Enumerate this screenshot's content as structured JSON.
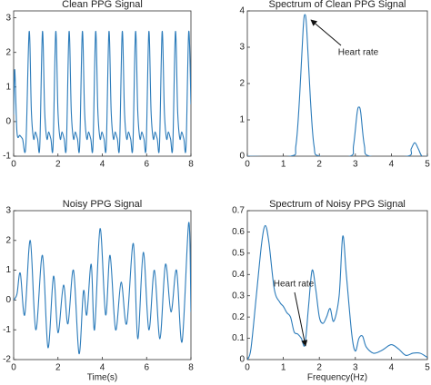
{
  "chart_data": [
    {
      "type": "line",
      "title": "Clean PPG Signal",
      "color": "#2b7bba",
      "x": [
        0,
        0.05,
        0.15,
        0.28,
        0.4,
        0.55,
        0.7,
        0.8,
        0.9,
        0.98,
        1.08,
        1.18,
        1.3,
        1.4,
        1.5,
        1.58,
        1.68,
        1.78,
        1.9,
        2.0,
        2.1,
        2.18,
        2.28,
        2.38,
        2.5,
        2.6,
        2.7,
        2.78,
        2.88,
        2.98,
        3.1,
        3.2,
        3.3,
        3.38,
        3.48,
        3.58,
        3.7,
        3.8,
        3.9,
        3.98,
        4.08,
        4.18,
        4.3,
        4.4,
        4.5,
        4.58,
        4.68,
        4.78,
        4.9,
        5.0,
        5.1,
        5.18,
        5.28,
        5.38,
        5.5,
        5.6,
        5.7,
        5.78,
        5.88,
        5.98,
        6.1,
        6.2,
        6.3,
        6.38,
        6.48,
        6.58,
        6.7,
        6.8,
        6.9,
        6.98,
        7.08,
        7.18,
        7.3,
        7.4,
        7.5,
        7.58,
        7.68,
        7.78,
        7.9,
        8.0
      ],
      "values": [
        0.2,
        1.5,
        -0.3,
        -0.4,
        -0.5,
        -0.7,
        2.6,
        0.3,
        -0.5,
        -0.3,
        -0.5,
        -0.7,
        2.6,
        0.3,
        -0.5,
        -0.3,
        -0.5,
        -0.7,
        2.6,
        0.3,
        -0.5,
        -0.3,
        -0.5,
        -0.7,
        2.6,
        0.3,
        -0.5,
        -0.3,
        -0.5,
        -0.7,
        2.6,
        0.3,
        -0.5,
        -0.3,
        -0.5,
        -0.7,
        2.6,
        0.3,
        -0.5,
        -0.3,
        -0.5,
        -0.7,
        2.6,
        0.3,
        -0.5,
        -0.3,
        -0.5,
        -0.7,
        2.6,
        0.3,
        -0.5,
        -0.3,
        -0.5,
        -0.7,
        2.6,
        0.3,
        -0.5,
        -0.3,
        -0.5,
        -0.7,
        2.6,
        0.3,
        -0.5,
        -0.3,
        -0.5,
        -0.7,
        2.6,
        0.3,
        -0.5,
        -0.3,
        -0.5,
        -0.7,
        2.6,
        0.3,
        -0.5,
        -0.3,
        -0.5,
        -0.7,
        2.6,
        0.5
      ],
      "xlim": [
        0,
        8
      ],
      "ylim": [
        -1,
        3.2
      ],
      "xticks": [
        0,
        2,
        4,
        6,
        8
      ],
      "yticks": [
        -1,
        0,
        1,
        2,
        3
      ]
    },
    {
      "type": "line",
      "title": "Spectrum of Clean PPG Signal",
      "color": "#2b7bba",
      "x": [
        0,
        1.2,
        1.35,
        1.45,
        1.55,
        1.6,
        1.65,
        1.75,
        1.85,
        2.0,
        2.85,
        2.95,
        3.05,
        3.1,
        3.15,
        3.25,
        3.4,
        4.45,
        4.55,
        4.65,
        4.75,
        4.85,
        5.0
      ],
      "values": [
        0,
        0,
        0.3,
        1.6,
        3.5,
        3.9,
        3.5,
        1.6,
        0.3,
        0,
        0,
        0.3,
        1.2,
        1.35,
        1.2,
        0.3,
        0,
        0,
        0.2,
        0.37,
        0.2,
        0,
        0
      ],
      "xlim": [
        0,
        5
      ],
      "ylim": [
        0,
        4
      ],
      "xticks": [
        0,
        1,
        2,
        3,
        4,
        5
      ],
      "yticks": [
        0,
        1,
        2,
        3,
        4
      ],
      "annotation": "Heart rate"
    },
    {
      "type": "line",
      "title": "Noisy PPG Signal",
      "xlabel": "Time(s)",
      "color": "#2b7bba",
      "x": [
        0,
        0.15,
        0.3,
        0.5,
        0.75,
        1.0,
        1.3,
        1.55,
        1.8,
        2.0,
        2.25,
        2.45,
        2.7,
        2.95,
        3.15,
        3.3,
        3.5,
        3.65,
        3.9,
        4.15,
        4.35,
        4.6,
        4.85,
        5.1,
        5.4,
        5.6,
        5.85,
        6.1,
        6.35,
        6.6,
        6.85,
        7.1,
        7.35,
        7.6,
        7.9,
        8.0
      ],
      "values": [
        0,
        0.2,
        0.9,
        -0.5,
        2,
        -1,
        1.5,
        -1.6,
        0.8,
        -1.1,
        0.5,
        -0.8,
        1,
        -1.8,
        0.3,
        -0.5,
        1.2,
        -1,
        2.4,
        -0.5,
        1.5,
        -1,
        0.6,
        -0.8,
        1.9,
        -1.3,
        1.6,
        -1,
        1,
        -1.3,
        1.2,
        -0.4,
        1,
        -1.4,
        2.6,
        -0.4
      ],
      "xlim": [
        0,
        8
      ],
      "ylim": [
        -2,
        3
      ],
      "xticks": [
        0,
        2,
        4,
        6,
        8
      ],
      "yticks": [
        -2,
        -1,
        0,
        1,
        2,
        3
      ]
    },
    {
      "type": "line",
      "title": "Spectrum of Noisy PPG Signal",
      "xlabel": "Frequency(Hz)",
      "color": "#2b7bba",
      "x": [
        0,
        0.1,
        0.25,
        0.4,
        0.5,
        0.6,
        0.75,
        0.9,
        1.0,
        1.1,
        1.2,
        1.3,
        1.4,
        1.5,
        1.6,
        1.7,
        1.8,
        1.9,
        2.0,
        2.1,
        2.2,
        2.3,
        2.4,
        2.55,
        2.65,
        2.75,
        2.9,
        3.0,
        3.1,
        3.2,
        3.3,
        3.5,
        3.7,
        3.8,
        4.0,
        4.2,
        4.4,
        4.6,
        4.8,
        5.0
      ],
      "values": [
        0,
        0.05,
        0.3,
        0.55,
        0.63,
        0.55,
        0.33,
        0.27,
        0.25,
        0.22,
        0.2,
        0.13,
        0.12,
        0.1,
        0.07,
        0.25,
        0.42,
        0.33,
        0.2,
        0.17,
        0.2,
        0.24,
        0.18,
        0.3,
        0.58,
        0.4,
        0.12,
        0.04,
        0.1,
        0.11,
        0.06,
        0.03,
        0.04,
        0.05,
        0.07,
        0.05,
        0.02,
        0.03,
        0.03,
        0.01
      ],
      "xlim": [
        0,
        5
      ],
      "ylim": [
        0,
        0.7
      ],
      "xticks": [
        0,
        1,
        2,
        3,
        4,
        5
      ],
      "yticks": [
        0,
        0.1,
        0.2,
        0.3,
        0.4,
        0.5,
        0.6,
        0.7
      ],
      "annotation": "Heart rate"
    }
  ]
}
